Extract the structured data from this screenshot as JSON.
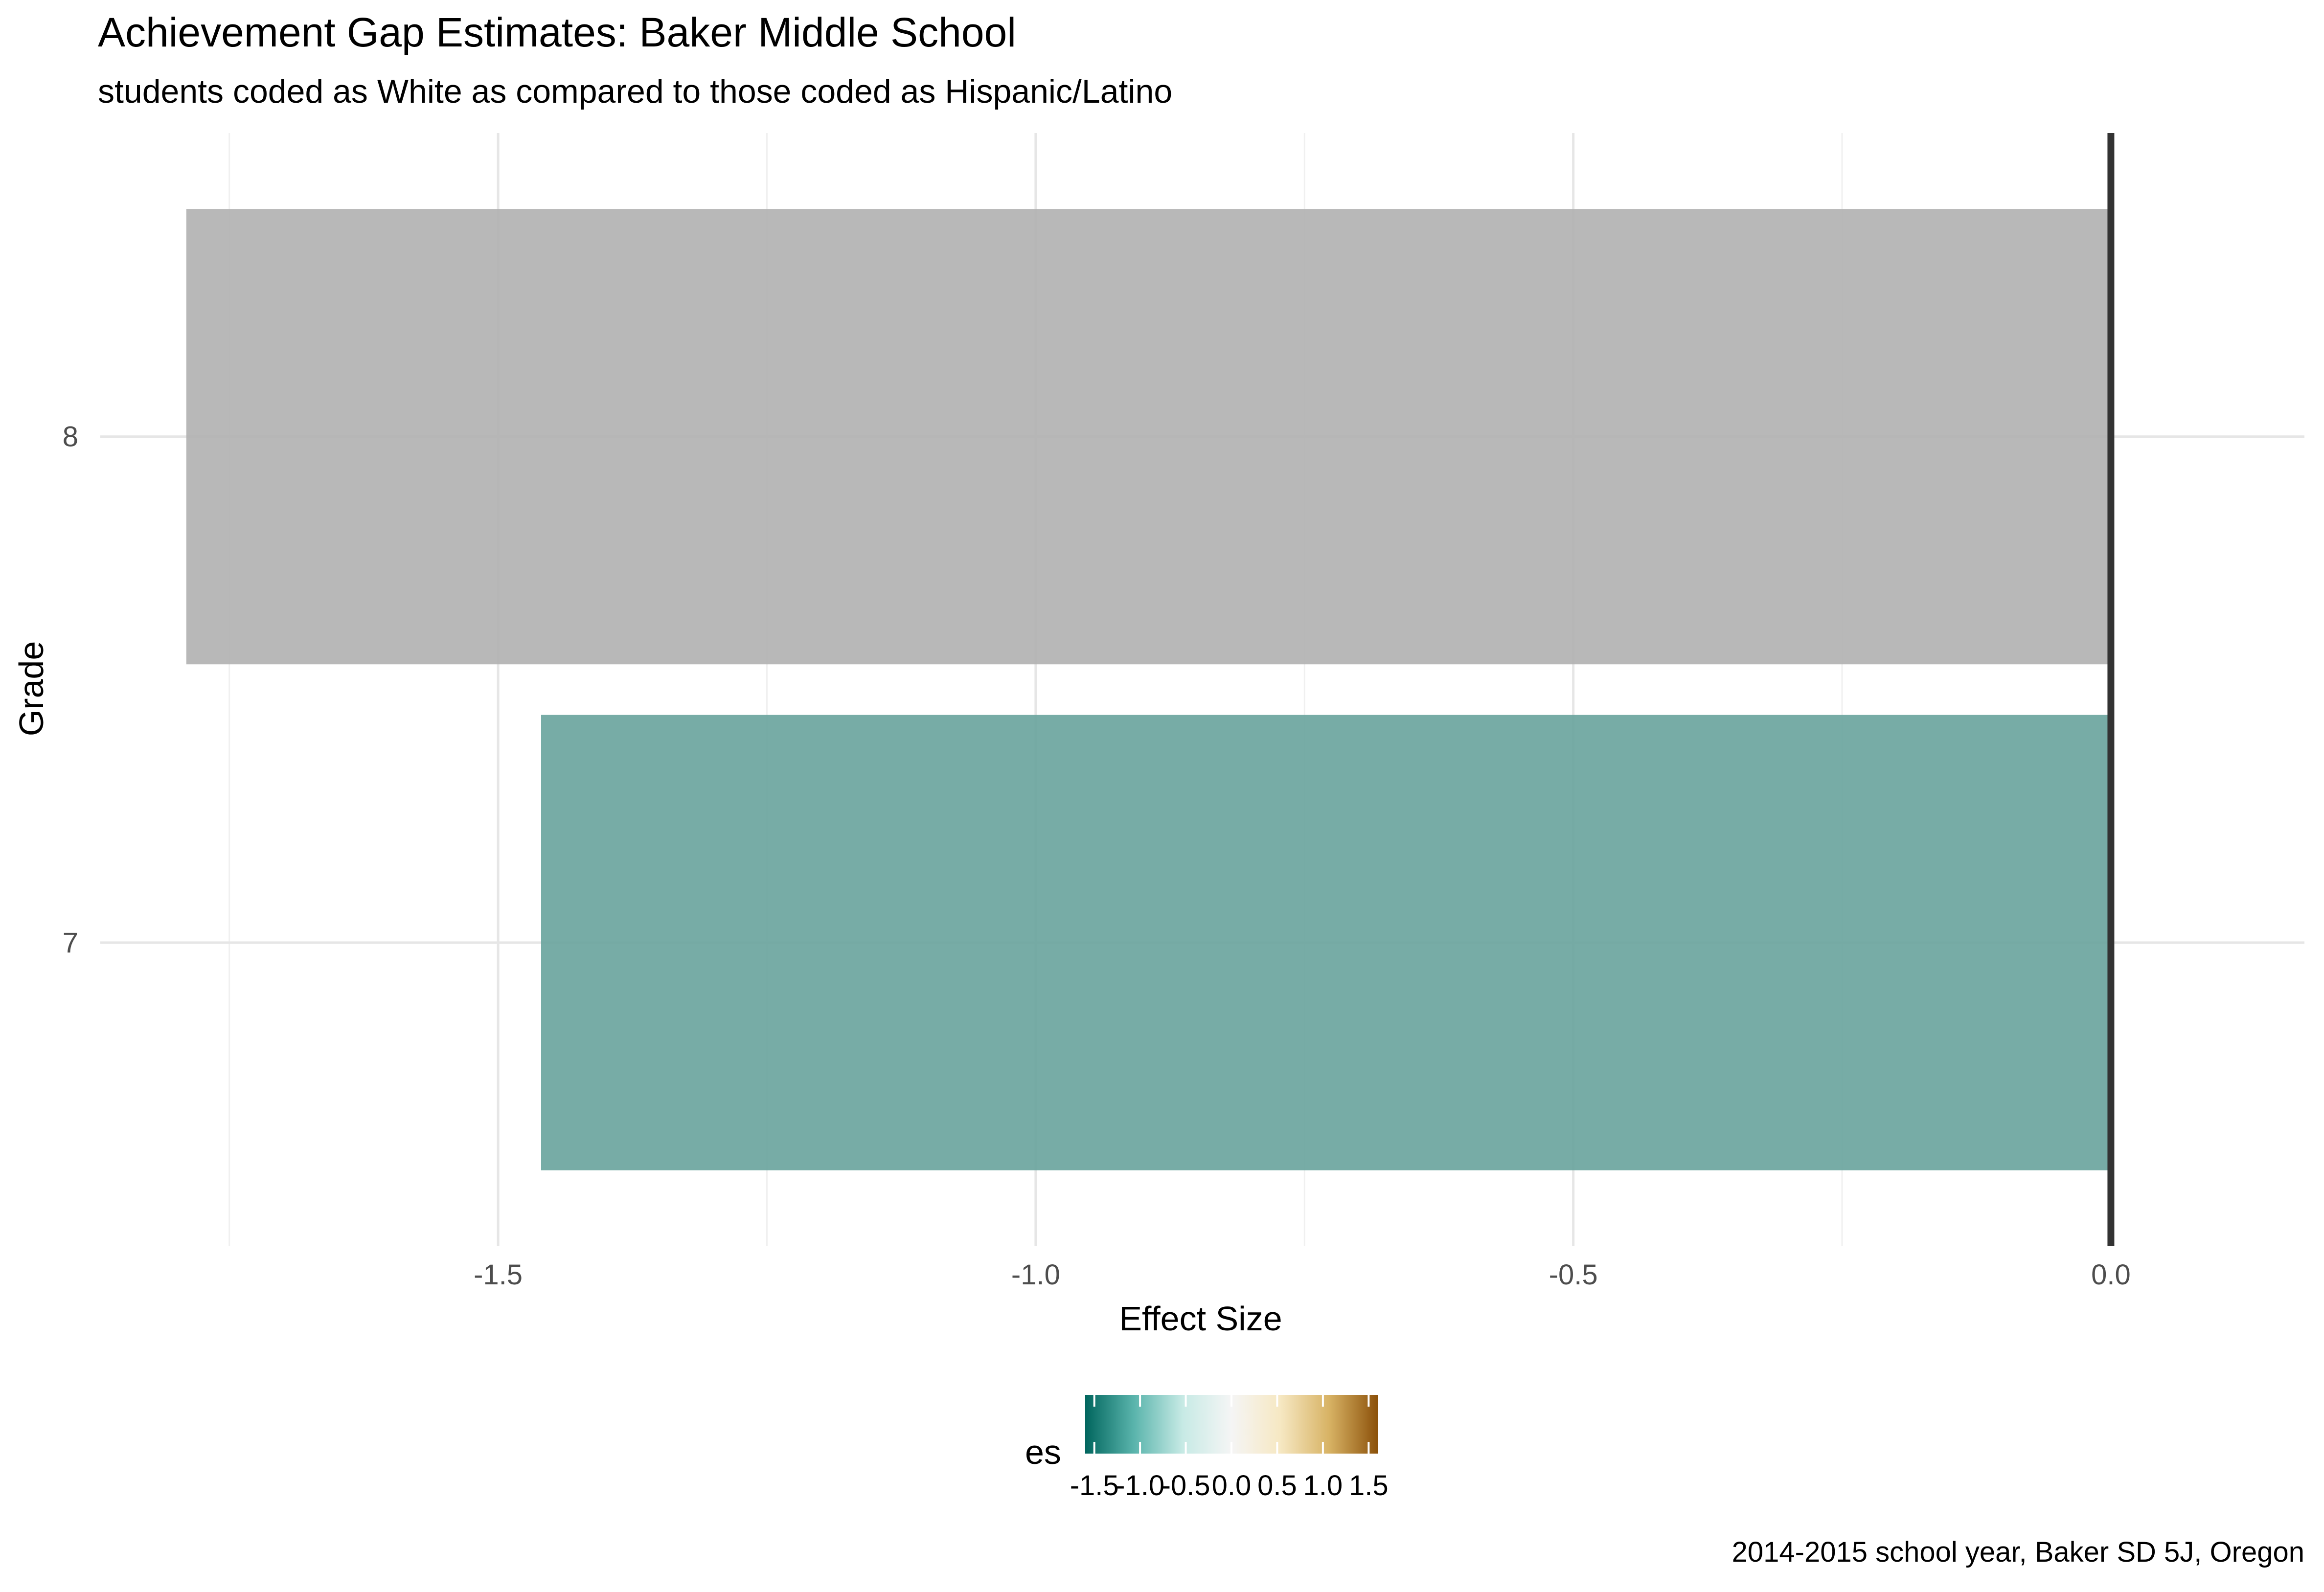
{
  "chart_data": {
    "type": "bar",
    "orientation": "horizontal",
    "title": "Achievement Gap Estimates: Baker Middle School",
    "subtitle": "students coded as White as compared to those coded as Hispanic/Latino",
    "caption": "2014-2015 school year, Baker SD 5J, Oregon",
    "xlabel": "Effect Size",
    "ylabel": "Grade",
    "xlim": [
      -1.87,
      0.18
    ],
    "categories": [
      "7",
      "8"
    ],
    "values": [
      -1.46,
      -1.79
    ],
    "bar_colors": [
      "#6ba59e",
      "#b2b2b2"
    ],
    "x_ticks": [
      -1.5,
      -1.0,
      -0.5,
      0.0
    ],
    "x_tick_labels": [
      "-1.5",
      "-1.0",
      "-0.5",
      "0.0"
    ],
    "reference_line_x": 0,
    "grid": true,
    "legend": {
      "title": "es",
      "position": "bottom",
      "type": "colorbar",
      "limits": [
        -1.6,
        1.6
      ],
      "breaks": [
        -1.5,
        -1.0,
        -0.5,
        0.0,
        0.5,
        1.0,
        1.5
      ],
      "labels": [
        "-1.5",
        "-1.0",
        "-0.5",
        "0.0",
        "0.5",
        "1.0",
        "1.5"
      ],
      "palette": [
        "#01665e",
        "#5ab4ac",
        "#c7eae5",
        "#f5f5f5",
        "#f6e8c3",
        "#d8b365",
        "#8c510a"
      ]
    }
  }
}
